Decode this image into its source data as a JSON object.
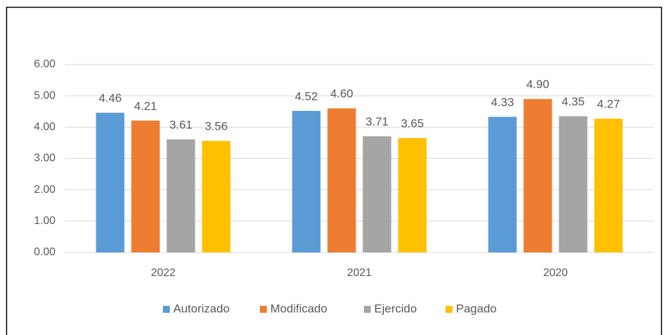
{
  "chart_data": {
    "type": "bar",
    "categories": [
      "2022",
      "2021",
      "2020"
    ],
    "series": [
      {
        "name": "Autorizado",
        "color": "#5b9bd5",
        "values": [
          4.46,
          4.52,
          4.33
        ],
        "value_labels": [
          "4.46",
          "4.52",
          "4.33"
        ]
      },
      {
        "name": "Modificado",
        "color": "#ed7d31",
        "values": [
          4.21,
          4.6,
          4.9
        ],
        "value_labels": [
          "4.21",
          "4.60",
          "4.90"
        ]
      },
      {
        "name": "Ejercido",
        "color": "#a5a5a5",
        "values": [
          3.61,
          3.71,
          4.35
        ],
        "value_labels": [
          "3.61",
          "3.71",
          "4.35"
        ]
      },
      {
        "name": "Pagado",
        "color": "#ffc000",
        "values": [
          3.56,
          3.65,
          4.27
        ],
        "value_labels": [
          "3.56",
          "3.65",
          "4.27"
        ]
      }
    ],
    "ylim": [
      0,
      6
    ],
    "yticks": [
      {
        "value": 0,
        "label": "0.00"
      },
      {
        "value": 1,
        "label": "1.00"
      },
      {
        "value": 2,
        "label": "2.00"
      },
      {
        "value": 3,
        "label": "3.00"
      },
      {
        "value": 4,
        "label": "4.00"
      },
      {
        "value": 5,
        "label": "5.00"
      },
      {
        "value": 6,
        "label": "6.00"
      }
    ],
    "grid": true,
    "legend": "bottom"
  }
}
